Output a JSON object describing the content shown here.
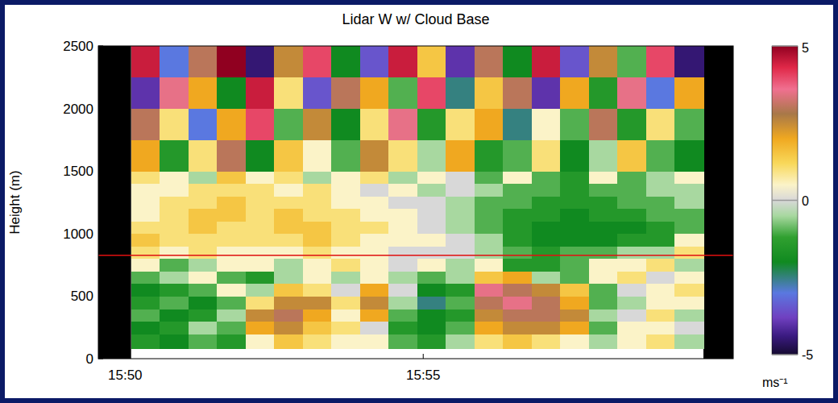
{
  "chart_data": {
    "type": "heatmap",
    "title": "Lidar W w/ Cloud Base",
    "y_label": "Height (m)",
    "xlim": [
      949.55,
      960.2
    ],
    "xticks": [
      {
        "value": 950,
        "label": "15:50"
      },
      {
        "value": 955,
        "label": "15:55"
      }
    ],
    "ylim": [
      0,
      2500
    ],
    "yticks": [
      0,
      500,
      1000,
      1500,
      2000,
      2500
    ],
    "x_bins": [
      950.1,
      950.58,
      951.06,
      951.54,
      952.02,
      952.5,
      952.98,
      953.46,
      953.94,
      954.42,
      954.9,
      955.38,
      955.86,
      956.34,
      956.82,
      957.3,
      957.78,
      958.26,
      958.74,
      959.22,
      959.7
    ],
    "y_bins": [
      80,
      200,
      300,
      400,
      500,
      600,
      700,
      800,
      900,
      1000,
      1100,
      1200,
      1300,
      1400,
      1500,
      1750,
      2000,
      2250,
      2500
    ],
    "values": [
      [
        -1.5,
        -2,
        -1,
        -1.5,
        0.5,
        1.5,
        1,
        0.5,
        0.5,
        -1,
        -1.5,
        -0.5,
        1,
        1.5,
        1,
        0.5,
        -0.5,
        0.5,
        1,
        -0.5
      ],
      [
        -2,
        -1.5,
        -0.5,
        -1,
        2,
        2.5,
        1.5,
        1,
        0,
        -1.5,
        -2,
        -1,
        2,
        2.5,
        2.5,
        2,
        -1,
        0.5,
        0.5,
        0
      ],
      [
        -1,
        -2,
        -1.5,
        -0.5,
        2.5,
        3,
        2,
        0.5,
        2,
        -1,
        -2,
        -1.5,
        2.5,
        3,
        3,
        2.5,
        -0.5,
        0,
        1,
        -0.5
      ],
      [
        -1.5,
        -1,
        -2,
        -1,
        1,
        2.5,
        2.5,
        1,
        2.5,
        -0.5,
        -2.5,
        -1,
        3,
        3.5,
        3,
        2,
        -1,
        -0.5,
        0.5,
        0.5
      ],
      [
        -2,
        -1.5,
        -1,
        0.5,
        -0.5,
        1.5,
        1,
        0,
        2,
        0,
        -2,
        -1.5,
        3.5,
        3,
        2.5,
        1.5,
        -1,
        0,
        0.5,
        1
      ],
      [
        -1,
        -0.5,
        0.5,
        -1,
        -1.5,
        -0.5,
        0.5,
        -0.5,
        0.5,
        -0.5,
        -1,
        -0.5,
        1.5,
        2,
        -0.5,
        -1,
        0.5,
        1,
        0,
        0.5
      ],
      [
        0.5,
        -1,
        -0.5,
        0.5,
        0.5,
        -0.5,
        0.5,
        1,
        0.5,
        0,
        0.5,
        -0.5,
        0.5,
        -1.5,
        -1.5,
        -1,
        0.5,
        0.5,
        1,
        -0.5
      ],
      [
        1,
        0.5,
        1,
        0.5,
        0.5,
        0.5,
        1,
        0.5,
        0.5,
        0,
        0,
        0,
        -0.5,
        -1,
        -1.5,
        -1,
        -1,
        -0.5,
        -0.5,
        1
      ],
      [
        1.5,
        1,
        1,
        1,
        1,
        1,
        1.5,
        1,
        0.5,
        0.5,
        0.5,
        0,
        -0.5,
        -1.5,
        -2,
        -2,
        -2,
        -1.5,
        -1.5,
        0.5
      ],
      [
        1,
        1,
        1.5,
        1,
        1,
        1.5,
        1.5,
        1,
        1,
        0.5,
        0,
        -0.5,
        -1,
        -1.5,
        -2,
        -2,
        -2,
        -2,
        -1.5,
        -1
      ],
      [
        0.5,
        1,
        1.5,
        1.5,
        1,
        1.5,
        1,
        1,
        0.5,
        0.5,
        0,
        -0.5,
        -1,
        -1.5,
        -1.5,
        -2,
        -1.5,
        -1.5,
        -1,
        -1
      ],
      [
        0.5,
        1,
        1,
        1.5,
        1,
        1,
        1,
        0.5,
        0.5,
        0,
        0,
        -0.5,
        -1,
        -1,
        -1.5,
        -1.5,
        -1.5,
        -1,
        -1,
        -0.5
      ],
      [
        0.5,
        0.5,
        1,
        1,
        1,
        0.5,
        1,
        0.5,
        0,
        0.5,
        -0.5,
        0,
        -0.5,
        -1,
        -1,
        -1.5,
        -1,
        -1,
        -0.5,
        -0.5
      ],
      [
        1,
        0.5,
        -0.5,
        1.5,
        0.5,
        1,
        -0.5,
        0.5,
        1,
        -0.5,
        0.5,
        0,
        -1,
        0.5,
        -1,
        -1.5,
        0.5,
        -1,
        -0.5,
        0.5
      ],
      [
        2,
        -1.5,
        1,
        3,
        -2,
        1.5,
        0.5,
        -1,
        2.5,
        1,
        -0.5,
        2,
        -1.5,
        -1,
        1,
        -2,
        -0.5,
        1.5,
        -1,
        -2
      ],
      [
        3,
        1,
        -3,
        2,
        4,
        -1,
        2.5,
        -2,
        1,
        3.5,
        -1.5,
        1,
        2,
        -2.5,
        0.5,
        -1,
        3,
        -1.5,
        1,
        -1
      ],
      [
        -4,
        3.5,
        2,
        -2,
        4.5,
        1,
        -3.5,
        3,
        2,
        -1,
        4,
        -2.5,
        1.5,
        3,
        -4,
        2,
        -1.5,
        3.5,
        -3,
        2
      ],
      [
        4.5,
        -3,
        3,
        5,
        -4.5,
        2.5,
        4,
        -2,
        -3.5,
        4.5,
        1.5,
        -4,
        3,
        -2,
        4.5,
        -3.5,
        2.5,
        -1,
        4,
        -4.5
      ]
    ],
    "cloud_base": 827,
    "colorbar": {
      "range": [
        -5,
        5
      ],
      "ticks": [
        -5,
        0,
        5
      ],
      "label": "ms⁻¹"
    }
  }
}
